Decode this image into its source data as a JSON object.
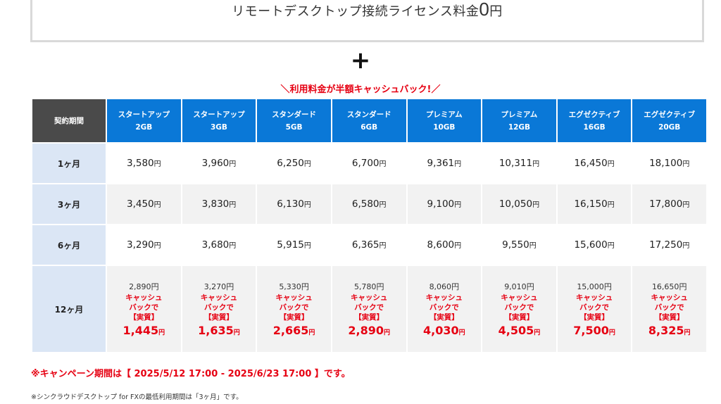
{
  "license": {
    "text": "リモートデスクトップ接続ライセンス料金",
    "amount": "0",
    "unit": "円"
  },
  "plus_symbol": "+",
  "promo": "＼利用料金が半額キャッシュバック!／",
  "table": {
    "period_header": "契約期間",
    "plans": [
      {
        "name": "スタートアップ",
        "size": "2GB"
      },
      {
        "name": "スタートアップ",
        "size": "3GB"
      },
      {
        "name": "スタンダード",
        "size": "5GB"
      },
      {
        "name": "スタンダード",
        "size": "6GB"
      },
      {
        "name": "プレミアム",
        "size": "10GB"
      },
      {
        "name": "プレミアム",
        "size": "12GB"
      },
      {
        "name": "エグゼクティブ",
        "size": "16GB"
      },
      {
        "name": "エグゼクティブ",
        "size": "20GB"
      }
    ],
    "rows": [
      {
        "period": "1ヶ月",
        "prices": [
          "3,580",
          "3,960",
          "6,250",
          "6,700",
          "9,361",
          "10,311",
          "16,450",
          "18,100"
        ]
      },
      {
        "period": "3ヶ月",
        "prices": [
          "3,450",
          "3,830",
          "6,130",
          "6,580",
          "9,100",
          "10,050",
          "16,150",
          "17,800"
        ]
      },
      {
        "period": "6ヶ月",
        "prices": [
          "3,290",
          "3,680",
          "5,915",
          "6,365",
          "8,600",
          "9,550",
          "15,600",
          "17,250"
        ]
      }
    ],
    "row12": {
      "period": "12ヶ月",
      "original": [
        "2,890",
        "3,270",
        "5,330",
        "5,780",
        "8,060",
        "9,010",
        "15,000",
        "16,650"
      ],
      "cashback_lines": [
        "キャッシュ",
        "バックで",
        "【実質】"
      ],
      "effective": [
        "1,445",
        "1,635",
        "2,665",
        "2,890",
        "4,030",
        "4,505",
        "7,500",
        "8,325"
      ]
    },
    "yen": "円"
  },
  "campaign": "※キャンペーン期間は【 2025/5/12 17:00 - 2025/6/23 17:00 】です。",
  "footnote": "※シンクラウドデスクトップ for FXの最低利用期間は「3ヶ月」です。",
  "colors": {
    "header_blue": "#0a78d7",
    "header_dark": "#4a4a4a",
    "period_cell": "#dbe6f5",
    "accent_red": "#e60012"
  }
}
